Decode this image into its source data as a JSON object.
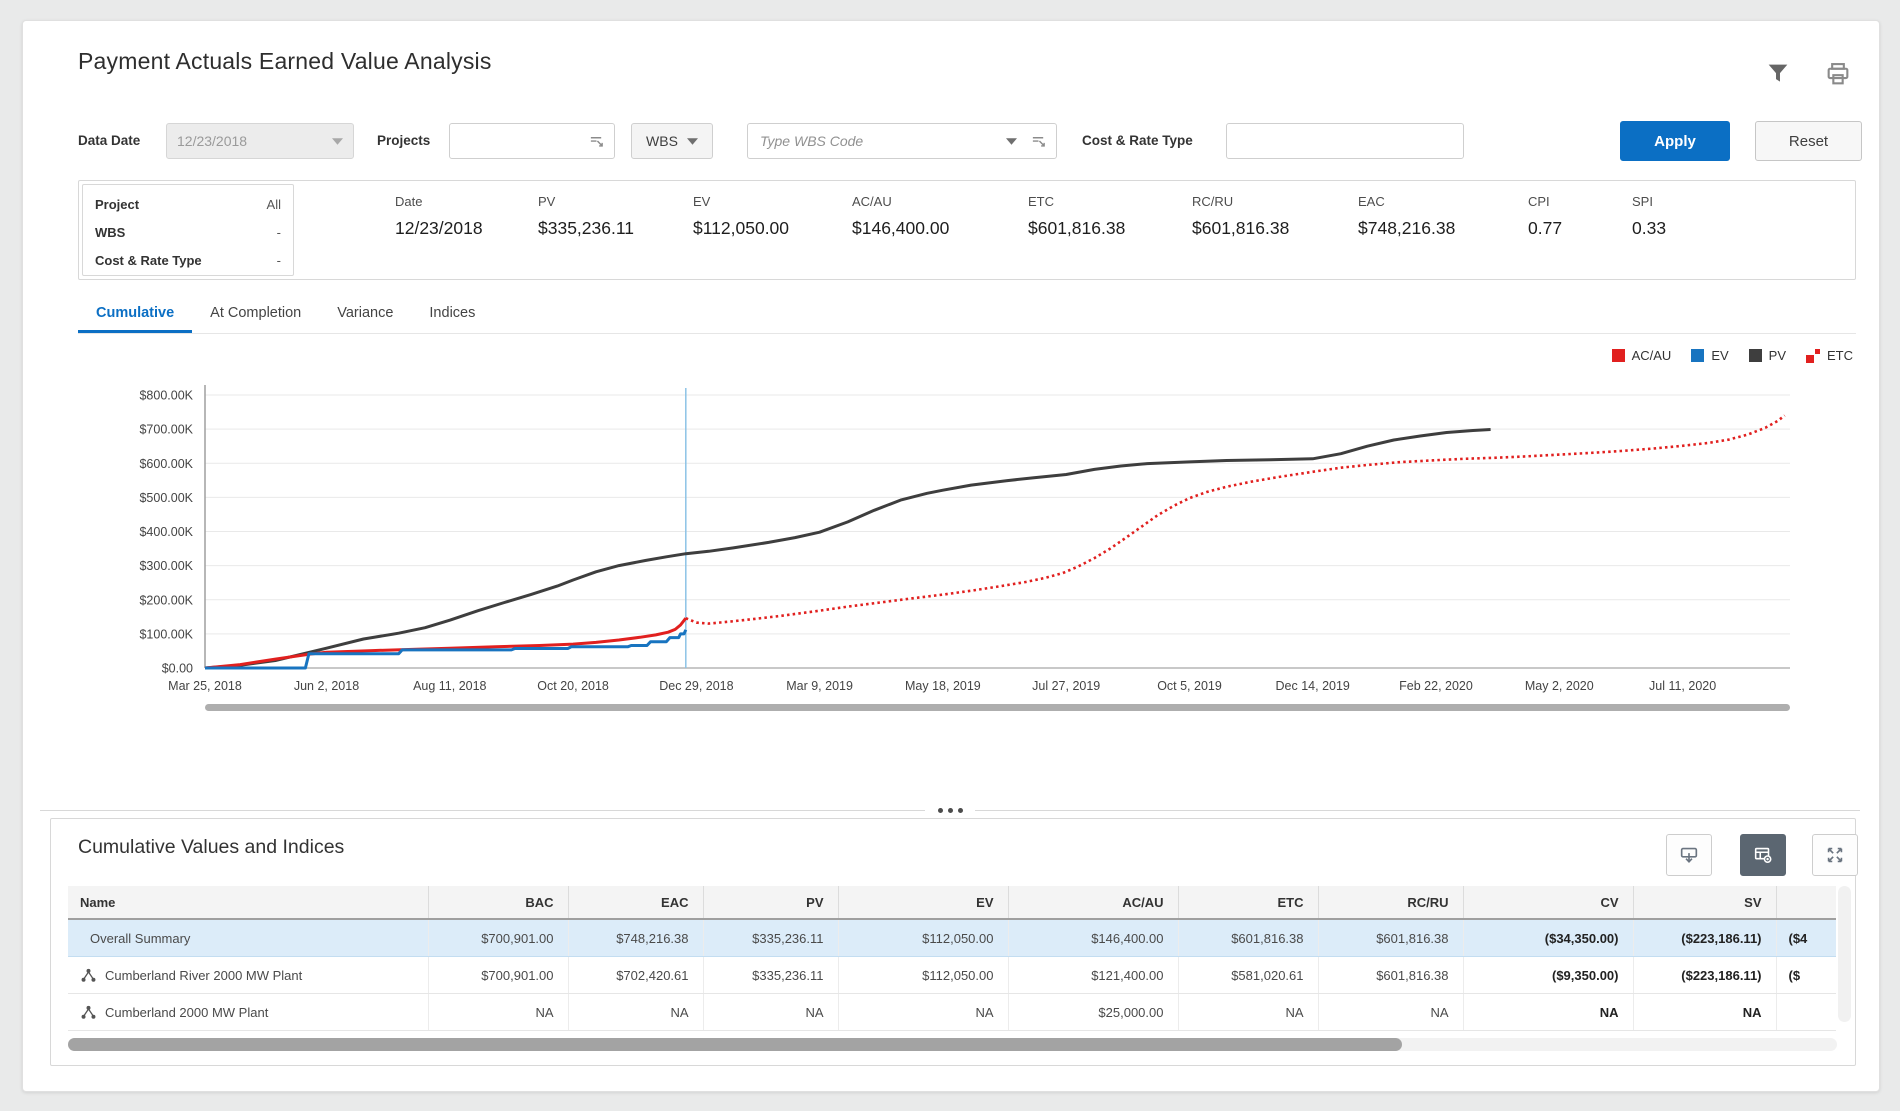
{
  "header": {
    "title": "Payment Actuals Earned Value Analysis"
  },
  "filters": {
    "data_date_label": "Data Date",
    "data_date_value": "12/23/2018",
    "projects_label": "Projects",
    "wbs_button": "WBS",
    "wbs_placeholder": "Type WBS Code",
    "cost_rate_label": "Cost & Rate Type",
    "apply_label": "Apply",
    "reset_label": "Reset"
  },
  "summary": {
    "left": [
      {
        "label": "Project",
        "value": "All"
      },
      {
        "label": "WBS",
        "value": "-"
      },
      {
        "label": "Cost & Rate Type",
        "value": "-"
      }
    ],
    "metrics": [
      {
        "label": "Date",
        "value": "12/23/2018"
      },
      {
        "label": "PV",
        "value": "$335,236.11"
      },
      {
        "label": "EV",
        "value": "$112,050.00"
      },
      {
        "label": "AC/AU",
        "value": "$146,400.00"
      },
      {
        "label": "ETC",
        "value": "$601,816.38"
      },
      {
        "label": "RC/RU",
        "value": "$601,816.38"
      },
      {
        "label": "EAC",
        "value": "$748,216.38"
      },
      {
        "label": "CPI",
        "value": "0.77"
      },
      {
        "label": "SPI",
        "value": "0.33"
      }
    ]
  },
  "tabs": [
    {
      "label": "Cumulative",
      "active": true
    },
    {
      "label": "At Completion",
      "active": false
    },
    {
      "label": "Variance",
      "active": false
    },
    {
      "label": "Indices",
      "active": false
    }
  ],
  "chart_data": {
    "type": "line",
    "title": "Cumulative earned value curves",
    "x_max_day": 900,
    "data_date_day": 273,
    "data_date_label": "12/23/2018",
    "ylim": [
      0,
      800
    ],
    "y_unit": "USD thousands",
    "grid": true,
    "legend_position": "top-right",
    "ytick_labels": [
      "$0.00",
      "$100.00K",
      "$200.00K",
      "$300.00K",
      "$400.00K",
      "$500.00K",
      "$600.00K",
      "$700.00K",
      "$800.00K"
    ],
    "xticks": [
      {
        "day": 0,
        "label": "Mar 25, 2018"
      },
      {
        "day": 69,
        "label": "Jun 2, 2018"
      },
      {
        "day": 139,
        "label": "Aug 11, 2018"
      },
      {
        "day": 209,
        "label": "Oct 20, 2018"
      },
      {
        "day": 279,
        "label": "Dec 29, 2018"
      },
      {
        "day": 349,
        "label": "Mar 9, 2019"
      },
      {
        "day": 419,
        "label": "May 18, 2019"
      },
      {
        "day": 489,
        "label": "Jul 27, 2019"
      },
      {
        "day": 559,
        "label": "Oct 5, 2019"
      },
      {
        "day": 629,
        "label": "Dec 14, 2019"
      },
      {
        "day": 699,
        "label": "Feb 22, 2020"
      },
      {
        "day": 769,
        "label": "May 2, 2020"
      },
      {
        "day": 839,
        "label": "Jul 11, 2020"
      }
    ],
    "series": [
      {
        "name": "PV",
        "color": "#3e3e3e",
        "style": "solid",
        "width": 3,
        "points": [
          [
            0,
            0
          ],
          [
            20,
            8
          ],
          [
            40,
            22
          ],
          [
            69,
            58
          ],
          [
            90,
            85
          ],
          [
            110,
            102
          ],
          [
            125,
            118
          ],
          [
            139,
            140
          ],
          [
            155,
            168
          ],
          [
            170,
            192
          ],
          [
            185,
            215
          ],
          [
            200,
            240
          ],
          [
            209,
            258
          ],
          [
            222,
            282
          ],
          [
            235,
            300
          ],
          [
            250,
            315
          ],
          [
            262,
            326
          ],
          [
            273,
            335
          ],
          [
            286,
            342
          ],
          [
            300,
            352
          ],
          [
            320,
            368
          ],
          [
            335,
            382
          ],
          [
            349,
            398
          ],
          [
            365,
            428
          ],
          [
            380,
            462
          ],
          [
            395,
            492
          ],
          [
            410,
            512
          ],
          [
            419,
            521
          ],
          [
            435,
            536
          ],
          [
            455,
            549
          ],
          [
            470,
            557
          ],
          [
            489,
            567
          ],
          [
            505,
            582
          ],
          [
            520,
            592
          ],
          [
            535,
            599
          ],
          [
            559,
            604
          ],
          [
            580,
            608
          ],
          [
            605,
            610
          ],
          [
            629,
            613
          ],
          [
            645,
            628
          ],
          [
            660,
            650
          ],
          [
            675,
            668
          ],
          [
            690,
            680
          ],
          [
            705,
            690
          ],
          [
            720,
            696
          ],
          [
            730,
            699
          ]
        ]
      },
      {
        "name": "ETC",
        "color": "#e1201f",
        "style": "dotted",
        "width": 2.6,
        "points": [
          [
            273,
            146
          ],
          [
            279,
            133
          ],
          [
            286,
            130
          ],
          [
            298,
            136
          ],
          [
            312,
            144
          ],
          [
            326,
            152
          ],
          [
            349,
            168
          ],
          [
            365,
            180
          ],
          [
            382,
            191
          ],
          [
            400,
            203
          ],
          [
            419,
            215
          ],
          [
            436,
            227
          ],
          [
            452,
            240
          ],
          [
            466,
            252
          ],
          [
            477,
            264
          ],
          [
            487,
            278
          ],
          [
            496,
            298
          ],
          [
            505,
            322
          ],
          [
            514,
            350
          ],
          [
            523,
            382
          ],
          [
            532,
            415
          ],
          [
            541,
            448
          ],
          [
            550,
            475
          ],
          [
            559,
            498
          ],
          [
            569,
            516
          ],
          [
            580,
            531
          ],
          [
            594,
            546
          ],
          [
            610,
            560
          ],
          [
            629,
            575
          ],
          [
            645,
            587
          ],
          [
            660,
            595
          ],
          [
            678,
            603
          ],
          [
            699,
            609
          ],
          [
            715,
            613
          ],
          [
            732,
            616
          ],
          [
            750,
            620
          ],
          [
            768,
            625
          ],
          [
            786,
            630
          ],
          [
            804,
            636
          ],
          [
            822,
            643
          ],
          [
            839,
            651
          ],
          [
            853,
            659
          ],
          [
            865,
            669
          ],
          [
            876,
            684
          ],
          [
            886,
            704
          ],
          [
            893,
            724
          ],
          [
            897,
            740
          ]
        ]
      },
      {
        "name": "AC/AU",
        "color": "#e1201f",
        "style": "solid",
        "width": 3,
        "points": [
          [
            0,
            0
          ],
          [
            20,
            10
          ],
          [
            40,
            26
          ],
          [
            60,
            41
          ],
          [
            69,
            46
          ],
          [
            95,
            51
          ],
          [
            120,
            55
          ],
          [
            139,
            58
          ],
          [
            165,
            62
          ],
          [
            190,
            66
          ],
          [
            209,
            70
          ],
          [
            222,
            75
          ],
          [
            235,
            82
          ],
          [
            247,
            90
          ],
          [
            256,
            97
          ],
          [
            263,
            105
          ],
          [
            267,
            113
          ],
          [
            270,
            126
          ],
          [
            273,
            146
          ]
        ]
      },
      {
        "name": "EV",
        "color": "#1874c0",
        "style": "solid",
        "width": 3,
        "points": [
          [
            0,
            0
          ],
          [
            57,
            0
          ],
          [
            59,
            42
          ],
          [
            110,
            42
          ],
          [
            112,
            53
          ],
          [
            174,
            53
          ],
          [
            176,
            57
          ],
          [
            206,
            57
          ],
          [
            208,
            62
          ],
          [
            240,
            62
          ],
          [
            242,
            66
          ],
          [
            251,
            66
          ],
          [
            253,
            77
          ],
          [
            262,
            77
          ],
          [
            264,
            89
          ],
          [
            269,
            89
          ],
          [
            270,
            100
          ],
          [
            272,
            100
          ],
          [
            273,
            112
          ]
        ]
      }
    ],
    "legend": [
      {
        "label": "AC/AU",
        "type": "solid",
        "color": "#e1201f"
      },
      {
        "label": "EV",
        "type": "solid",
        "color": "#1874c0"
      },
      {
        "label": "PV",
        "type": "solid",
        "color": "#3e3e3e"
      },
      {
        "label": "ETC",
        "type": "dotted",
        "color": "#e1201f"
      }
    ]
  },
  "table": {
    "title": "Cumulative Values and Indices",
    "columns": [
      "Name",
      "BAC",
      "EAC",
      "PV",
      "EV",
      "AC/AU",
      "ETC",
      "RC/RU",
      "CV",
      "SV",
      ""
    ],
    "rows": [
      {
        "name": "Overall Summary",
        "icon": false,
        "highlight": true,
        "values": [
          "$700,901.00",
          "$748,216.38",
          "$335,236.11",
          "$112,050.00",
          "$146,400.00",
          "$601,816.38",
          "$601,816.38",
          "($34,350.00)",
          "($223,186.11)",
          "($4"
        ]
      },
      {
        "name": "Cumberland River 2000 MW Plant",
        "icon": true,
        "highlight": false,
        "values": [
          "$700,901.00",
          "$702,420.61",
          "$335,236.11",
          "$112,050.00",
          "$121,400.00",
          "$581,020.61",
          "$601,816.38",
          "($9,350.00)",
          "($223,186.11)",
          "($"
        ]
      },
      {
        "name": "Cumberland 2000 MW Plant",
        "icon": true,
        "highlight": false,
        "values": [
          "NA",
          "NA",
          "NA",
          "NA",
          "$25,000.00",
          "NA",
          "NA",
          "NA",
          "NA",
          ""
        ]
      }
    ]
  },
  "icons": {
    "filter": "funnel",
    "print": "printer",
    "input_picker": "list-select",
    "dropdown": "caret-down",
    "export": "box-arrow-down",
    "view_toggle": "table-gear",
    "expand": "arrows-expand",
    "project_row": "network-triangle",
    "splitter": "three-dots"
  },
  "colors": {
    "accent_blue": "#0b6fc4",
    "series_red": "#e1201f",
    "series_blue": "#1874c0",
    "series_gray": "#3e3e3e",
    "data_date_line": "#8cc3e6",
    "highlight_row": "#dcecf9"
  }
}
